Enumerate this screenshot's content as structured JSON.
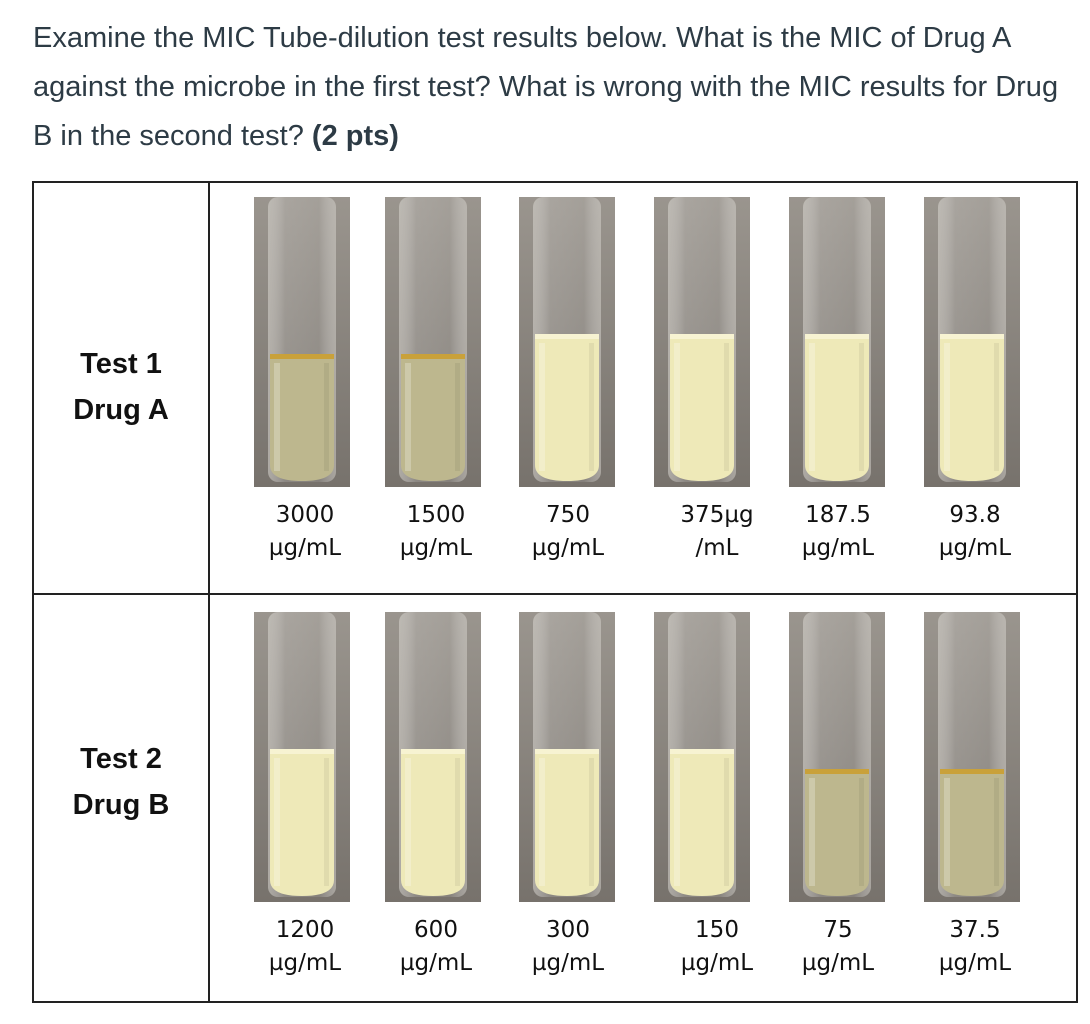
{
  "question": {
    "text": "Examine the MIC Tube-dilution test results below. What is the MIC of Drug A against the microbe in the first test? What is wrong with the MIC results for Drug B in the second test?",
    "points": "(2 pts)"
  },
  "tests": [
    {
      "label_line1": "Test 1",
      "label_line2": "Drug A",
      "tubes": [
        {
          "conc_line1": "3000",
          "conc_line2": "µg/mL",
          "appearance": "clear"
        },
        {
          "conc_line1": "1500",
          "conc_line2": "µg/mL",
          "appearance": "clear"
        },
        {
          "conc_line1": "750",
          "conc_line2": "µg/mL",
          "appearance": "turbid"
        },
        {
          "conc_line1": "375µg",
          "conc_line2": "/mL",
          "appearance": "turbid"
        },
        {
          "conc_line1": "187.5",
          "conc_line2": "µg/mL",
          "appearance": "turbid"
        },
        {
          "conc_line1": "93.8",
          "conc_line2": "µg/mL",
          "appearance": "turbid"
        }
      ]
    },
    {
      "label_line1": "Test 2",
      "label_line2": "Drug B",
      "tubes": [
        {
          "conc_line1": "1200",
          "conc_line2": "µg/mL",
          "appearance": "turbid"
        },
        {
          "conc_line1": "600",
          "conc_line2": "µg/mL",
          "appearance": "turbid"
        },
        {
          "conc_line1": "300",
          "conc_line2": "µg/mL",
          "appearance": "turbid"
        },
        {
          "conc_line1": "150",
          "conc_line2": "µg/mL",
          "appearance": "turbid"
        },
        {
          "conc_line1": "75",
          "conc_line2": "µg/mL",
          "appearance": "clear"
        },
        {
          "conc_line1": "37.5",
          "conc_line2": "µg/mL",
          "appearance": "clear"
        }
      ]
    }
  ],
  "colors": {
    "turbid_broth": "#eee9b8",
    "clear_broth": "#bdb78e",
    "tube_background": "#8c8780",
    "meniscus": "#c9a13a"
  }
}
